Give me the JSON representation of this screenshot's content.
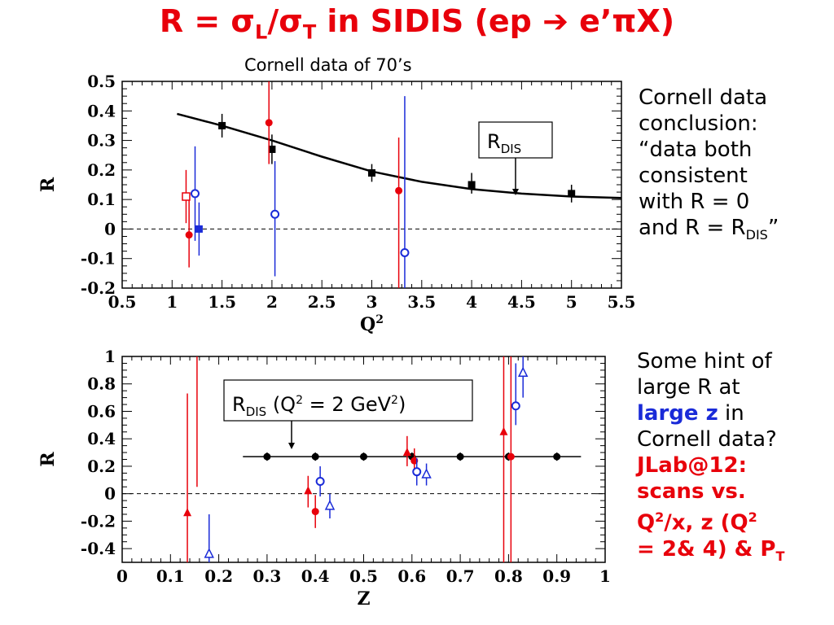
{
  "header": {
    "title_prefix": "R = ",
    "title_sigma_l": "σ",
    "title_l": "L",
    "title_slash": "/",
    "title_sigma_t": "σ",
    "title_t": "T",
    "title_rest": " in SIDIS (ep ",
    "title_arrow": "➔",
    "title_end": " e’πX)",
    "subtitle": "Cornell data of 70’s"
  },
  "notes": {
    "top": {
      "line1": "Cornell data",
      "line2": "conclusion:",
      "line3": "“data both",
      "line4": "consistent",
      "line5": "with R = 0",
      "line6_pre": "and R = R",
      "line6_sub": "DIS",
      "line6_post": "”"
    },
    "bottom": {
      "line1": "Some hint of",
      "line2": "large R at",
      "line3_em": "large z",
      "line3_post": " in",
      "line4": "Cornell data?",
      "line5": "JLab@12:",
      "line6": "scans vs.",
      "line7_a": "Q",
      "line7_sup": "2",
      "line7_b": "/x, z (Q",
      "line7_sup2": "2",
      "line8_a": "= 2& 4) & P",
      "line8_sub": "T"
    }
  },
  "colors": {
    "red": "#e8000b",
    "blue": "#1a2bd8",
    "black": "#000000"
  },
  "chart_data": [
    {
      "type": "scatter",
      "xlabel": "Q2",
      "ylabel": "R",
      "xlim": [
        0.5,
        5.5
      ],
      "ylim": [
        -0.2,
        0.5
      ],
      "xticks": [
        "0.5",
        "1",
        "1.5",
        "2",
        "2.5",
        "3",
        "3.5",
        "4",
        "4.5",
        "5",
        "5.5"
      ],
      "yticks": [
        "-0.2",
        "-0.1",
        "0",
        "0.1",
        "0.2",
        "0.3",
        "0.4",
        "0.5"
      ],
      "annotation": {
        "text": "R",
        "sub": "DIS"
      },
      "curve_name": "RDIS",
      "curve": [
        [
          1.05,
          0.39
        ],
        [
          1.5,
          0.35
        ],
        [
          2.0,
          0.3
        ],
        [
          2.5,
          0.245
        ],
        [
          3.0,
          0.195
        ],
        [
          3.5,
          0.16
        ],
        [
          4.0,
          0.135
        ],
        [
          4.5,
          0.12
        ],
        [
          5.0,
          0.11
        ],
        [
          5.5,
          0.105
        ]
      ],
      "series": [
        {
          "marker": "filled-square",
          "color": "black",
          "points": [
            {
              "x": 1.5,
              "y": 0.35,
              "lo": 0.31,
              "hi": 0.39
            },
            {
              "x": 2.0,
              "y": 0.27,
              "lo": 0.22,
              "hi": 0.32
            },
            {
              "x": 3.0,
              "y": 0.19,
              "lo": 0.16,
              "hi": 0.22
            },
            {
              "x": 4.0,
              "y": 0.15,
              "lo": 0.12,
              "hi": 0.19
            },
            {
              "x": 5.0,
              "y": 0.12,
              "lo": 0.09,
              "hi": 0.15
            }
          ]
        },
        {
          "marker": "filled-circle",
          "color": "red",
          "points": [
            {
              "x": 1.97,
              "y": 0.36,
              "lo": 0.22,
              "hi": 0.5
            },
            {
              "x": 3.27,
              "y": 0.13,
              "lo": -0.2,
              "hi": 0.31
            },
            {
              "x": 1.17,
              "y": -0.02,
              "lo": -0.13,
              "hi": 0.1
            }
          ]
        },
        {
          "marker": "open-circle",
          "color": "blue",
          "points": [
            {
              "x": 1.23,
              "y": 0.12,
              "lo": -0.04,
              "hi": 0.28
            },
            {
              "x": 2.03,
              "y": 0.05,
              "lo": -0.16,
              "hi": 0.23
            },
            {
              "x": 3.33,
              "y": -0.08,
              "lo": -0.2,
              "hi": 0.45
            }
          ]
        },
        {
          "marker": "open-square",
          "color": "red",
          "points": [
            {
              "x": 1.14,
              "y": 0.11,
              "lo": 0.02,
              "hi": 0.2
            }
          ]
        },
        {
          "marker": "filled-square",
          "color": "blue",
          "points": [
            {
              "x": 1.27,
              "y": 0.0,
              "lo": -0.09,
              "hi": 0.09
            }
          ]
        }
      ]
    },
    {
      "type": "scatter",
      "xlabel": "Z",
      "ylabel": "R",
      "xlim": [
        0,
        1
      ],
      "ylim": [
        -0.5,
        1
      ],
      "xticks": [
        "0",
        "0.1",
        "0.2",
        "0.3",
        "0.4",
        "0.5",
        "0.6",
        "0.7",
        "0.8",
        "0.9",
        "1"
      ],
      "yticks": [
        "-0.4",
        "-0.2",
        "0",
        "0.2",
        "0.4",
        "0.6",
        "0.8",
        "1"
      ],
      "annotation": {
        "text": "R",
        "sub": "DIS",
        "rest": " (Q",
        "sup": "2",
        "rest2": " = 2 GeV",
        "sup2": "2",
        "end": ")"
      },
      "line_y": 0.27,
      "line_x": [
        0.25,
        0.95
      ],
      "series": [
        {
          "marker": "filled-circle",
          "color": "black",
          "points": [
            {
              "x": 0.3,
              "y": 0.27,
              "lo": 0.24,
              "hi": 0.3
            },
            {
              "x": 0.4,
              "y": 0.27,
              "lo": 0.24,
              "hi": 0.3
            },
            {
              "x": 0.5,
              "y": 0.27,
              "lo": 0.24,
              "hi": 0.3
            },
            {
              "x": 0.6,
              "y": 0.27,
              "lo": 0.24,
              "hi": 0.3
            },
            {
              "x": 0.7,
              "y": 0.27,
              "lo": 0.24,
              "hi": 0.3
            },
            {
              "x": 0.8,
              "y": 0.27,
              "lo": 0.24,
              "hi": 0.3
            },
            {
              "x": 0.9,
              "y": 0.27,
              "lo": 0.24,
              "hi": 0.3
            }
          ]
        },
        {
          "marker": "filled-triangle",
          "color": "red",
          "points": [
            {
              "x": 0.135,
              "y": -0.14,
              "lo": -0.5,
              "hi": 0.73
            },
            {
              "x": 0.385,
              "y": 0.02,
              "lo": -0.1,
              "hi": 0.13
            },
            {
              "x": 0.59,
              "y": 0.3,
              "lo": 0.2,
              "hi": 0.42
            },
            {
              "x": 0.79,
              "y": 0.45,
              "lo": -0.5,
              "hi": 1.0
            }
          ]
        },
        {
          "marker": "filled-circle",
          "color": "red",
          "points": [
            {
              "x": 0.4,
              "y": -0.13,
              "lo": -0.25,
              "hi": -0.01
            },
            {
              "x": 0.605,
              "y": 0.24,
              "lo": 0.15,
              "hi": 0.33
            },
            {
              "x": 0.805,
              "y": 0.27,
              "lo": -0.5,
              "hi": 1.0
            }
          ]
        },
        {
          "marker": "open-triangle",
          "color": "blue",
          "points": [
            {
              "x": 0.18,
              "y": -0.44,
              "lo": -0.5,
              "hi": -0.15
            },
            {
              "x": 0.43,
              "y": -0.09,
              "lo": -0.18,
              "hi": 0.0
            },
            {
              "x": 0.63,
              "y": 0.14,
              "lo": 0.06,
              "hi": 0.22
            },
            {
              "x": 0.83,
              "y": 0.88,
              "lo": 0.7,
              "hi": 1.0
            }
          ]
        },
        {
          "marker": "open-circle",
          "color": "blue",
          "points": [
            {
              "x": 0.41,
              "y": 0.09,
              "lo": -0.02,
              "hi": 0.2
            },
            {
              "x": 0.61,
              "y": 0.16,
              "lo": 0.06,
              "hi": 0.26
            },
            {
              "x": 0.815,
              "y": 0.64,
              "lo": 0.5,
              "hi": 0.95
            }
          ]
        }
      ],
      "extra_lines": [
        {
          "color": "red",
          "x": 0.155,
          "lo": 0.05,
          "hi": 1.0
        }
      ]
    }
  ]
}
